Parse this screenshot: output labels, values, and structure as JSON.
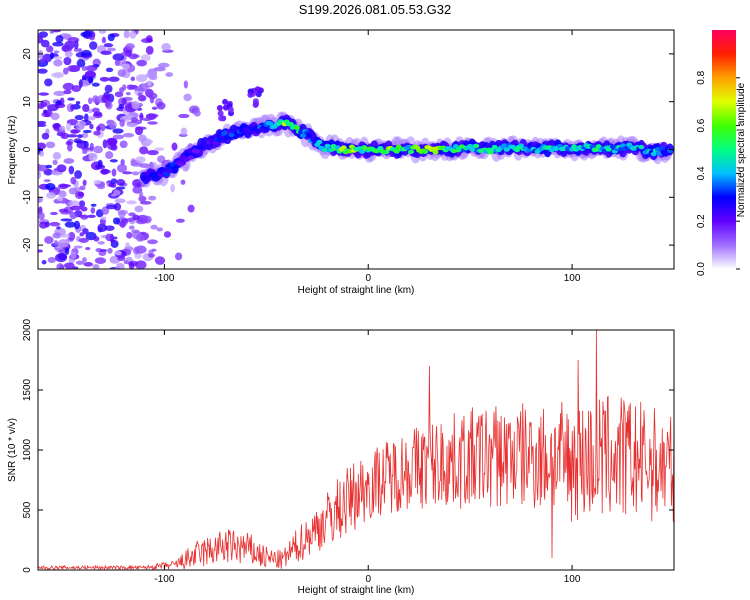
{
  "title": "S199.2026.081.05.53.G32",
  "chart_data": [
    {
      "type": "heatmap",
      "xlabel": "Height of straight line (km)",
      "ylabel": "Frequency (Hz)",
      "xlim": [
        -162,
        150
      ],
      "ylim": [
        -25,
        25
      ],
      "x_ticks": [
        -100,
        0,
        100
      ],
      "x_tick_labels": [
        "-100",
        "0",
        "100"
      ],
      "y_ticks": [
        -20,
        -10,
        0,
        10,
        20
      ],
      "y_tick_labels": [
        "-20",
        "-10",
        "0",
        "10",
        "20"
      ],
      "colorbar": {
        "label": "Normalized spectral amplitude",
        "range": [
          0,
          1
        ],
        "ticks": [
          0.0,
          0.2,
          0.4,
          0.6,
          0.8
        ],
        "tick_labels": [
          "0.0",
          "0.2",
          "0.4",
          "0.6",
          "0.8"
        ],
        "colors": [
          "#ffffff",
          "#a070ff",
          "#6000ff",
          "#0000ff",
          "#00c0ff",
          "#00ff80",
          "#40ff00",
          "#e0ff00",
          "#ffa000",
          "#ff2000",
          "#ff0060"
        ]
      },
      "ridge": [
        {
          "x": -110,
          "y": -5.5,
          "v": 0.3
        },
        {
          "x": -100,
          "y": -5.0,
          "v": 0.35
        },
        {
          "x": -90,
          "y": -2.0,
          "v": 0.3
        },
        {
          "x": -80,
          "y": 1.0,
          "v": 0.3
        },
        {
          "x": -70,
          "y": 3.0,
          "v": 0.35
        },
        {
          "x": -60,
          "y": 4.0,
          "v": 0.35
        },
        {
          "x": -50,
          "y": 5.0,
          "v": 0.4
        },
        {
          "x": -40,
          "y": 5.5,
          "v": 0.75
        },
        {
          "x": -30,
          "y": 3.0,
          "v": 0.4
        },
        {
          "x": -22,
          "y": 0.5,
          "v": 0.45
        },
        {
          "x": -10,
          "y": 0.0,
          "v": 0.8
        },
        {
          "x": 0,
          "y": 0.0,
          "v": 0.6
        },
        {
          "x": 10,
          "y": 0.0,
          "v": 0.75
        },
        {
          "x": 20,
          "y": 0.0,
          "v": 0.6
        },
        {
          "x": 30,
          "y": 0.0,
          "v": 0.85
        },
        {
          "x": 40,
          "y": 0.0,
          "v": 0.6
        },
        {
          "x": 50,
          "y": 0.5,
          "v": 0.55
        },
        {
          "x": 60,
          "y": 0.0,
          "v": 0.6
        },
        {
          "x": 70,
          "y": 0.5,
          "v": 0.55
        },
        {
          "x": 80,
          "y": 0.0,
          "v": 0.5
        },
        {
          "x": 90,
          "y": 0.5,
          "v": 0.55
        },
        {
          "x": 100,
          "y": 0.0,
          "v": 0.5
        },
        {
          "x": 110,
          "y": 0.5,
          "v": 0.55
        },
        {
          "x": 120,
          "y": 0.0,
          "v": 0.5
        },
        {
          "x": 130,
          "y": 0.5,
          "v": 0.45
        },
        {
          "x": 140,
          "y": -0.5,
          "v": 0.5
        },
        {
          "x": 148,
          "y": 0.0,
          "v": 0.4
        }
      ],
      "spurs": [
        {
          "x": -55,
          "y": 11.0,
          "v": 0.3
        },
        {
          "x": -70,
          "y": 8.0,
          "v": 0.25
        }
      ],
      "noise_region": {
        "x_min": -162,
        "x_max": -105,
        "y_min": -25,
        "y_max": 25,
        "level": 0.25
      }
    },
    {
      "type": "line",
      "xlabel": "Height of straight line (km)",
      "ylabel": "SNR (10 * v/v)",
      "xlim": [
        -162,
        150
      ],
      "ylim": [
        0,
        2000
      ],
      "x_ticks": [
        -100,
        0,
        100
      ],
      "x_tick_labels": [
        "-100",
        "0",
        "100"
      ],
      "y_ticks": [
        0,
        500,
        1000,
        1500,
        2000
      ],
      "y_tick_labels": [
        "0",
        "500",
        "1000",
        "1500",
        "2000"
      ],
      "color": "#e83030",
      "envelope": [
        {
          "x": -162,
          "base": 20,
          "amp": 15
        },
        {
          "x": -110,
          "base": 20,
          "amp": 15
        },
        {
          "x": -95,
          "base": 40,
          "amp": 40
        },
        {
          "x": -85,
          "base": 120,
          "amp": 120
        },
        {
          "x": -70,
          "base": 200,
          "amp": 150
        },
        {
          "x": -60,
          "base": 180,
          "amp": 150
        },
        {
          "x": -50,
          "base": 100,
          "amp": 100
        },
        {
          "x": -42,
          "base": 80,
          "amp": 80
        },
        {
          "x": -35,
          "base": 200,
          "amp": 150
        },
        {
          "x": -25,
          "base": 350,
          "amp": 200
        },
        {
          "x": -15,
          "base": 500,
          "amp": 280
        },
        {
          "x": -5,
          "base": 650,
          "amp": 300
        },
        {
          "x": 5,
          "base": 750,
          "amp": 300
        },
        {
          "x": 20,
          "base": 850,
          "amp": 350
        },
        {
          "x": 40,
          "base": 900,
          "amp": 400
        },
        {
          "x": 60,
          "base": 950,
          "amp": 450
        },
        {
          "x": 80,
          "base": 950,
          "amp": 450
        },
        {
          "x": 100,
          "base": 900,
          "amp": 500
        },
        {
          "x": 120,
          "base": 950,
          "amp": 550
        },
        {
          "x": 150,
          "base": 850,
          "amp": 450
        }
      ],
      "peaks": [
        {
          "x": 30,
          "y": 1700
        },
        {
          "x": 90,
          "y": 100
        },
        {
          "x": 112,
          "y": 2000
        },
        {
          "x": 103,
          "y": 1750
        }
      ]
    }
  ]
}
